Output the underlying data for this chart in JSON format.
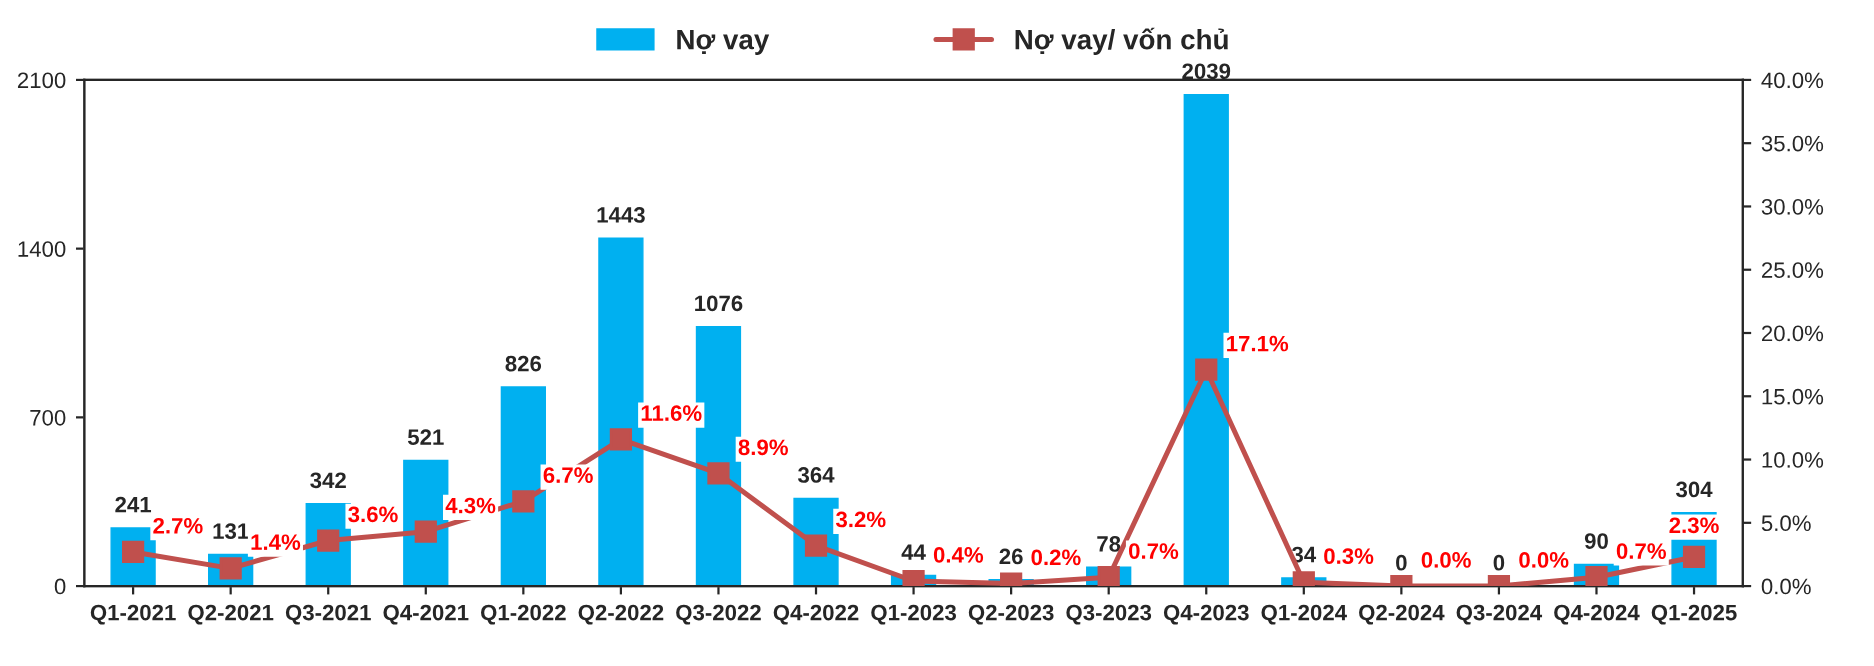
{
  "chart_data": {
    "type": "bar",
    "categories": [
      "Q1-2021",
      "Q2-2021",
      "Q3-2021",
      "Q4-2021",
      "Q1-2022",
      "Q2-2022",
      "Q3-2022",
      "Q4-2022",
      "Q1-2023",
      "Q2-2023",
      "Q3-2023",
      "Q4-2023",
      "Q1-2024",
      "Q2-2024",
      "Q3-2024",
      "Q4-2024",
      "Q1-2025"
    ],
    "series": [
      {
        "name": "Nợ vay",
        "color": "#00b0f0",
        "values": [
          241,
          131,
          342,
          521,
          826,
          1443,
          1076,
          364,
          44,
          26,
          78,
          2039,
          34,
          0,
          0,
          90,
          304
        ],
        "data_labels": true
      },
      {
        "name": "Nợ vay/ vốn chủ",
        "type": "line",
        "axis": "y2",
        "color": "#c0504d",
        "marker": "square",
        "values": [
          2.7,
          1.4,
          3.6,
          4.3,
          6.7,
          11.6,
          8.9,
          3.2,
          0.4,
          0.2,
          0.7,
          17.1,
          0.3,
          0.0,
          0.0,
          0.7,
          2.3
        ],
        "value_labels": [
          "2.7%",
          "1.4%",
          "3.6%",
          "4.3%",
          "6.7%",
          "11.6%",
          "8.9%",
          "3.2%",
          "0.4%",
          "0.2%",
          "0.7%",
          "17.1%",
          "0.3%",
          "0.0%",
          "0.0%",
          "0.7%",
          "2.3%"
        ]
      }
    ],
    "ylim": [
      0,
      2100
    ],
    "yticks": [
      0,
      700,
      1400,
      2100
    ],
    "y2lim": [
      0,
      40
    ],
    "y2ticks": [
      {
        "value": 0,
        "label": "0.0%"
      },
      {
        "value": 5,
        "label": "5.0%"
      },
      {
        "value": 10,
        "label": "10.0%"
      },
      {
        "value": 15,
        "label": "15.0%"
      },
      {
        "value": 20,
        "label": "20.0%"
      },
      {
        "value": 25,
        "label": "25.0%"
      },
      {
        "value": 30,
        "label": "30.0%"
      },
      {
        "value": 35,
        "label": "35.0%"
      },
      {
        "value": 40,
        "label": "40.0%"
      }
    ],
    "grid": false,
    "legend": "top"
  }
}
